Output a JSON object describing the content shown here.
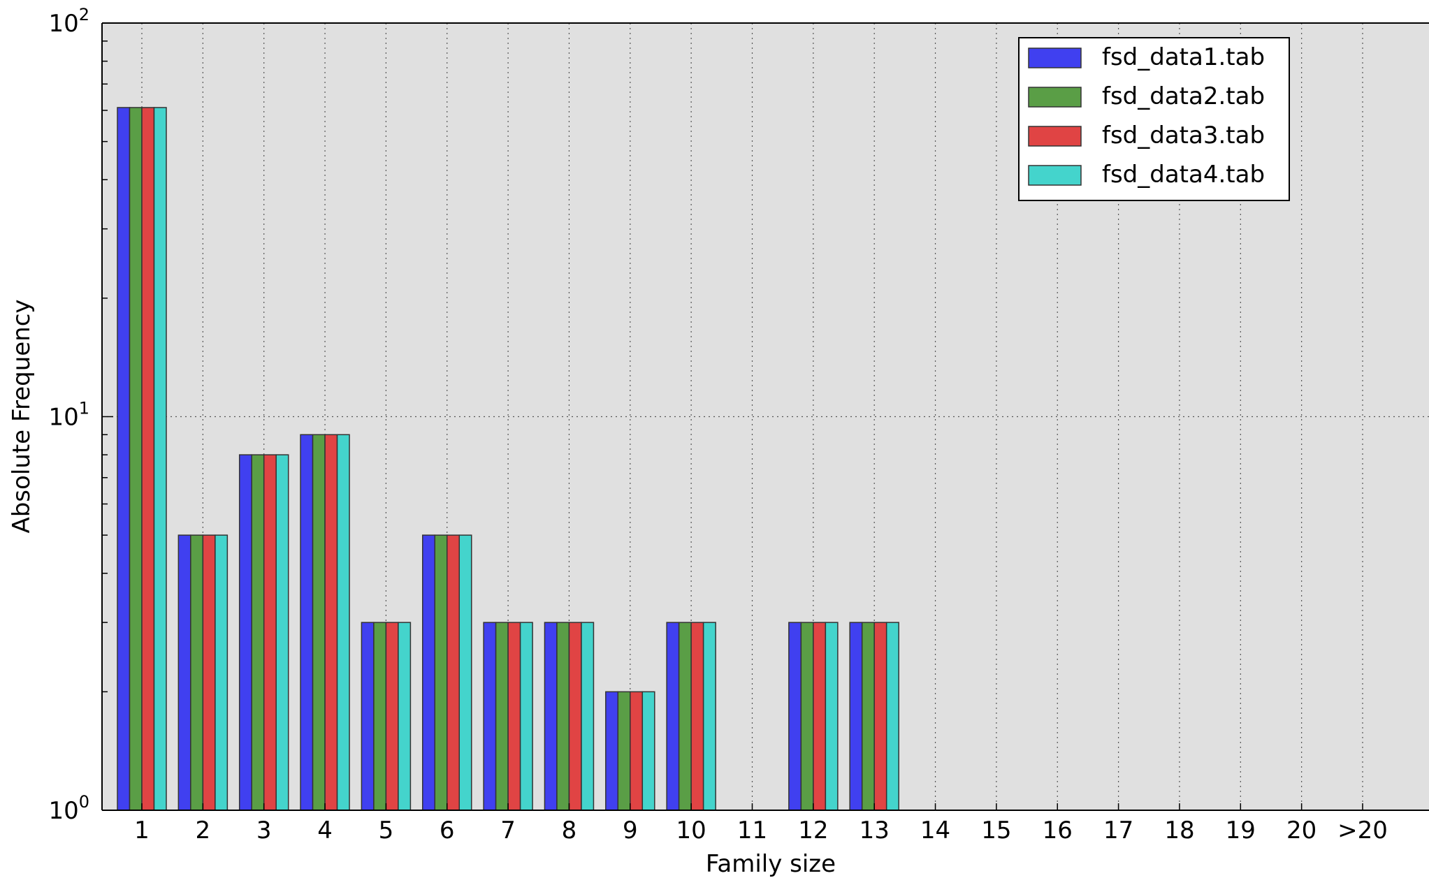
{
  "chart_data": {
    "type": "bar",
    "title": "",
    "xlabel": "Family size",
    "ylabel": "Absolute Frequency",
    "yscale": "log",
    "ylim": [
      1,
      100
    ],
    "y_ticks": [
      {
        "value": 1,
        "base": "10",
        "exp": "0"
      },
      {
        "value": 10,
        "base": "10",
        "exp": "1"
      },
      {
        "value": 100,
        "base": "10",
        "exp": "2"
      }
    ],
    "categories": [
      "1",
      "2",
      "3",
      "4",
      "5",
      "6",
      "7",
      "8",
      "9",
      "10",
      "11",
      "12",
      "13",
      "14",
      "15",
      "16",
      "17",
      "18",
      "19",
      "20",
      ">20"
    ],
    "series": [
      {
        "name": "fsd_data1.tab",
        "color": "#4040f0",
        "values": [
          61,
          5,
          8,
          9,
          3,
          5,
          3,
          3,
          2,
          3,
          0,
          3,
          3,
          0,
          0,
          0,
          0,
          0,
          0,
          0,
          0
        ]
      },
      {
        "name": "fsd_data2.tab",
        "color": "#5a9e46",
        "values": [
          61,
          5,
          8,
          9,
          3,
          5,
          3,
          3,
          2,
          3,
          0,
          3,
          3,
          0,
          0,
          0,
          0,
          0,
          0,
          0,
          0
        ]
      },
      {
        "name": "fsd_data3.tab",
        "color": "#e04444",
        "values": [
          61,
          5,
          8,
          9,
          3,
          5,
          3,
          3,
          2,
          3,
          0,
          3,
          3,
          0,
          0,
          0,
          0,
          0,
          0,
          0,
          0
        ]
      },
      {
        "name": "fsd_data4.tab",
        "color": "#44d4cc",
        "values": [
          61,
          5,
          8,
          9,
          3,
          5,
          3,
          3,
          2,
          3,
          0,
          3,
          3,
          0,
          0,
          0,
          0,
          0,
          0,
          0,
          0
        ]
      }
    ],
    "grid": true,
    "legend_position": "top-right",
    "background_color": "#e0e0e0"
  }
}
